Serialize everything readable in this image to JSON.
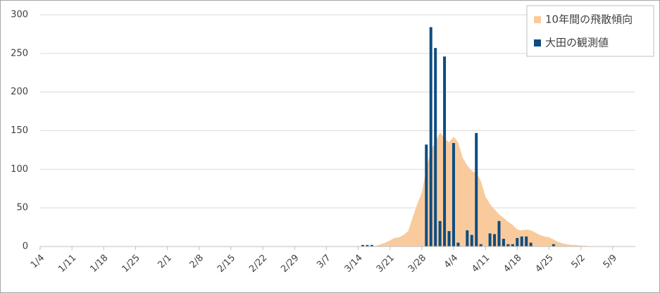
{
  "chart_data": {
    "type": "bar",
    "categories": [
      "1/4",
      null,
      null,
      null,
      null,
      null,
      null,
      "1/11",
      null,
      null,
      null,
      null,
      null,
      null,
      "1/18",
      null,
      null,
      null,
      null,
      null,
      null,
      "1/25",
      null,
      null,
      null,
      null,
      null,
      null,
      "2/1",
      null,
      null,
      null,
      null,
      null,
      null,
      "2/8",
      null,
      null,
      null,
      null,
      null,
      null,
      "2/15",
      null,
      null,
      null,
      null,
      null,
      null,
      "2/22",
      null,
      null,
      null,
      null,
      null,
      null,
      "2/29",
      null,
      null,
      null,
      null,
      null,
      null,
      "3/7",
      null,
      null,
      null,
      null,
      null,
      null,
      "3/14",
      null,
      null,
      null,
      null,
      null,
      null,
      "3/21",
      null,
      null,
      null,
      null,
      null,
      null,
      "3/28",
      null,
      null,
      null,
      null,
      null,
      null,
      "4/4",
      null,
      null,
      null,
      null,
      null,
      null,
      "4/11",
      null,
      null,
      null,
      null,
      null,
      null,
      "4/18",
      null,
      null,
      null,
      null,
      null,
      null,
      "4/25",
      null,
      null,
      null,
      null,
      null,
      null,
      "5/2",
      null,
      null,
      null,
      null,
      null,
      null,
      "5/9",
      null,
      null,
      null,
      null,
      null
    ],
    "series": [
      {
        "name": "10年間の飛散傾向",
        "type": "area",
        "color": "#f9cb9c",
        "values": [
          0,
          0,
          0,
          0,
          0,
          0,
          0,
          0,
          0,
          0,
          0,
          0,
          0,
          0,
          0,
          0,
          0,
          0,
          0,
          0,
          0,
          0,
          0,
          0,
          0,
          0,
          0,
          0,
          0,
          0,
          0,
          0,
          0,
          0,
          0,
          0,
          0,
          0,
          0,
          0,
          0,
          0,
          0,
          0,
          0,
          0,
          0,
          0,
          0,
          0,
          0,
          0,
          0,
          0,
          0,
          0,
          0,
          0,
          0,
          0,
          0,
          0,
          0,
          0,
          0,
          0,
          0,
          0,
          0,
          0,
          0,
          0,
          0,
          0,
          1,
          3,
          5,
          8,
          11,
          12,
          15,
          20,
          38,
          55,
          70,
          100,
          125,
          135,
          148,
          140,
          135,
          142,
          135,
          115,
          105,
          98,
          95,
          85,
          65,
          55,
          48,
          42,
          37,
          32,
          28,
          22,
          21,
          22,
          21,
          18,
          15,
          13,
          12,
          9,
          6,
          4,
          3,
          2,
          2,
          1,
          1,
          0,
          0,
          0,
          0,
          0,
          0,
          0,
          0,
          0,
          0,
          0
        ]
      },
      {
        "name": "大田の観測値",
        "type": "bar",
        "color": "#0f4c81",
        "values": [
          0,
          0,
          0,
          0,
          0,
          0,
          0,
          0,
          0,
          0,
          0,
          0,
          0,
          0,
          0,
          0,
          0,
          0,
          0,
          0,
          0,
          0,
          0,
          0,
          0,
          0,
          0,
          0,
          0,
          0,
          0,
          0,
          0,
          0,
          0,
          0,
          0,
          0,
          0,
          0,
          0,
          0,
          0,
          0,
          0,
          0,
          0,
          0,
          0,
          0,
          0,
          0,
          0,
          0,
          0,
          0,
          0,
          0,
          0,
          0,
          0,
          0,
          0,
          0,
          0,
          0,
          0,
          0,
          0,
          0,
          0,
          2,
          2,
          2,
          0,
          0,
          0,
          0,
          0,
          0,
          0,
          0,
          0,
          0,
          0,
          132,
          284,
          257,
          33,
          246,
          20,
          134,
          5,
          0,
          21,
          15,
          147,
          3,
          0,
          17,
          16,
          33,
          10,
          3,
          3,
          11,
          13,
          13,
          5,
          0,
          0,
          0,
          0,
          3,
          0,
          0,
          0,
          0,
          0,
          0,
          0,
          0,
          0,
          0,
          0,
          0,
          0,
          0,
          0,
          0,
          0,
          0
        ]
      }
    ],
    "ylim": [
      0,
      300
    ],
    "yticks": [
      0,
      50,
      100,
      150,
      200,
      250,
      300
    ],
    "grid": true,
    "legend": "top-right"
  }
}
